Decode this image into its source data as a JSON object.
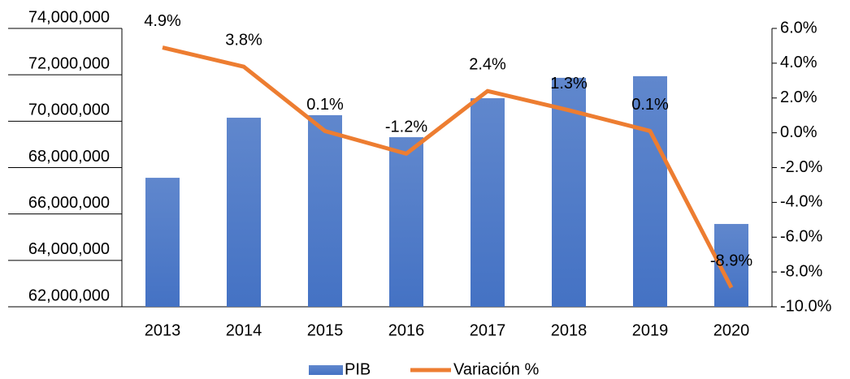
{
  "chart_data": {
    "type": "bar-line",
    "categories": [
      "2013",
      "2014",
      "2015",
      "2016",
      "2017",
      "2018",
      "2019",
      "2020"
    ],
    "series": [
      {
        "name": "PIB",
        "type": "bar",
        "color": "#4472c4",
        "values": [
          67560000,
          70150000,
          70260000,
          69310000,
          70990000,
          71870000,
          71940000,
          65570000
        ]
      },
      {
        "name": "Variación %",
        "type": "line",
        "axis": "y2",
        "color": "#ed7d31",
        "values": [
          4.9,
          3.8,
          0.1,
          -1.2,
          2.4,
          1.3,
          0.1,
          -8.9
        ],
        "value_labels": [
          "4.9%",
          "3.8%",
          "0.1%",
          "-1.2%",
          "2.4%",
          "1.3%",
          "0.1%",
          "-8.9%"
        ]
      }
    ],
    "ylim": [
      62000000,
      74000000
    ],
    "yticks": [
      {
        "value": 62000000,
        "label": "62,000,000"
      },
      {
        "value": 64000000,
        "label": "64,000,000"
      },
      {
        "value": 66000000,
        "label": "66,000,000"
      },
      {
        "value": 68000000,
        "label": "68,000,000"
      },
      {
        "value": 70000000,
        "label": "70,000,000"
      },
      {
        "value": 72000000,
        "label": "72,000,000"
      },
      {
        "value": 74000000,
        "label": "74,000,000"
      }
    ],
    "y2lim": [
      -10,
      6
    ],
    "y2ticks": [
      {
        "value": -10,
        "label": "-10.0%"
      },
      {
        "value": -8,
        "label": "-8.0%"
      },
      {
        "value": -6,
        "label": "-6.0%"
      },
      {
        "value": -4,
        "label": "-4.0%"
      },
      {
        "value": -2,
        "label": "-2.0%"
      },
      {
        "value": 0,
        "label": "0.0%"
      },
      {
        "value": 2,
        "label": "2.0%"
      },
      {
        "value": 4,
        "label": "4.0%"
      },
      {
        "value": 6,
        "label": "6.0%"
      }
    ],
    "legend": "bottom"
  }
}
